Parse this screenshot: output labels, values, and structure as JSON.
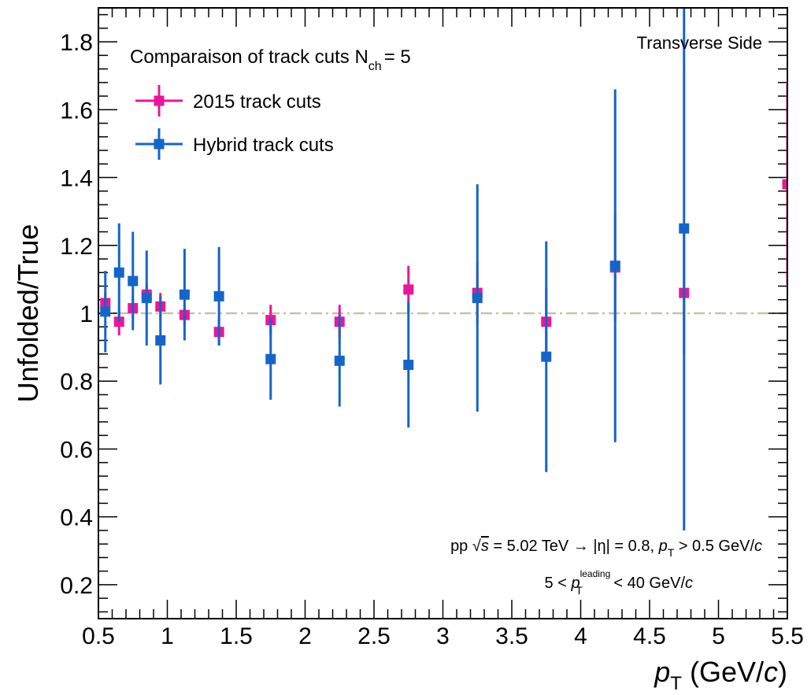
{
  "chart_data": {
    "type": "scatter",
    "xlabel_main": "p",
    "xlabel_sub": "T",
    "xlabel_unit_prefix": " (GeV/",
    "xlabel_unit_c": "c",
    "xlabel_unit_suffix": ")",
    "ylabel": "Unfolded/True",
    "xlim": [
      0.5,
      5.5
    ],
    "ylim": [
      0.1,
      1.9
    ],
    "xticks": [
      0.5,
      1,
      1.5,
      2,
      2.5,
      3,
      3.5,
      4,
      4.5,
      5,
      5.5
    ],
    "xtick_labels": [
      "0.5",
      "1",
      "1.5",
      "2",
      "2.5",
      "3",
      "3.5",
      "4",
      "4.5",
      "5",
      "5.5"
    ],
    "yticks": [
      0.2,
      0.4,
      0.6,
      0.8,
      1.0,
      1.2,
      1.4,
      1.6,
      1.8
    ],
    "ytick_labels": [
      "0.2",
      "0.4",
      "0.6",
      "0.8",
      "1",
      "1.2",
      "1.4",
      "1.6",
      "1.8"
    ],
    "reference_line": 1.0,
    "legend": {
      "title_main": "Comparaison of track cuts N",
      "title_sub": "ch",
      "title_suffix": "= 5",
      "placement": "top-left"
    },
    "corner_label": "Transverse Side",
    "annotation_line1": {
      "a": "pp ",
      "sqrt": "√",
      "s": "s",
      "b": " = 5.02 TeV → |η| = 0.8, ",
      "p": "p",
      "sub": "T",
      "c": " > 0.5 GeV/",
      "cc": "c"
    },
    "annotation_line2": {
      "a": "5 < ",
      "p": "p",
      "sup": "leading",
      "sub": "T",
      "b": " < 40 GeV/",
      "cc": "c"
    },
    "series": [
      {
        "name": "2015 track cuts",
        "color": "#e8179a",
        "points": [
          {
            "x": 0.55,
            "y": 1.03,
            "err": 0.03
          },
          {
            "x": 0.65,
            "y": 0.975,
            "err": 0.04
          },
          {
            "x": 0.75,
            "y": 1.015,
            "err": 0.03
          },
          {
            "x": 0.85,
            "y": 1.055,
            "err": 0.03
          },
          {
            "x": 0.95,
            "y": 1.02,
            "err": 0.04
          },
          {
            "x": 1.125,
            "y": 0.995,
            "err": 0.03
          },
          {
            "x": 1.375,
            "y": 0.945,
            "err": 0.04
          },
          {
            "x": 1.75,
            "y": 0.98,
            "err": 0.045
          },
          {
            "x": 2.25,
            "y": 0.975,
            "err": 0.05
          },
          {
            "x": 2.75,
            "y": 1.07,
            "err": 0.07
          },
          {
            "x": 3.25,
            "y": 1.06,
            "err": 0.09
          },
          {
            "x": 3.75,
            "y": 0.975,
            "err": 0.1
          },
          {
            "x": 4.25,
            "y": 1.135,
            "err": 0.16
          },
          {
            "x": 4.75,
            "y": 1.06,
            "err": 0.18
          },
          {
            "x": 5.5,
            "y": 1.38,
            "err": 0.295
          }
        ]
      },
      {
        "name": "Hybrid track cuts",
        "color": "#1565c8",
        "points": [
          {
            "x": 0.55,
            "y": 1.005,
            "err": 0.12
          },
          {
            "x": 0.65,
            "y": 1.12,
            "err": 0.145
          },
          {
            "x": 0.75,
            "y": 1.095,
            "err": 0.145
          },
          {
            "x": 0.85,
            "y": 1.045,
            "err": 0.14
          },
          {
            "x": 0.95,
            "y": 0.92,
            "err": 0.13
          },
          {
            "x": 1.125,
            "y": 1.055,
            "err": 0.135
          },
          {
            "x": 1.375,
            "y": 1.05,
            "err": 0.145
          },
          {
            "x": 1.75,
            "y": 0.865,
            "err": 0.12
          },
          {
            "x": 2.25,
            "y": 0.86,
            "err": 0.135
          },
          {
            "x": 2.75,
            "y": 0.848,
            "err": 0.185
          },
          {
            "x": 3.25,
            "y": 1.045,
            "err": 0.335
          },
          {
            "x": 3.75,
            "y": 0.872,
            "err": 0.34
          },
          {
            "x": 4.25,
            "y": 1.14,
            "err": 0.52
          },
          {
            "x": 4.75,
            "y": 1.25,
            "err": 0.89
          }
        ]
      }
    ]
  }
}
